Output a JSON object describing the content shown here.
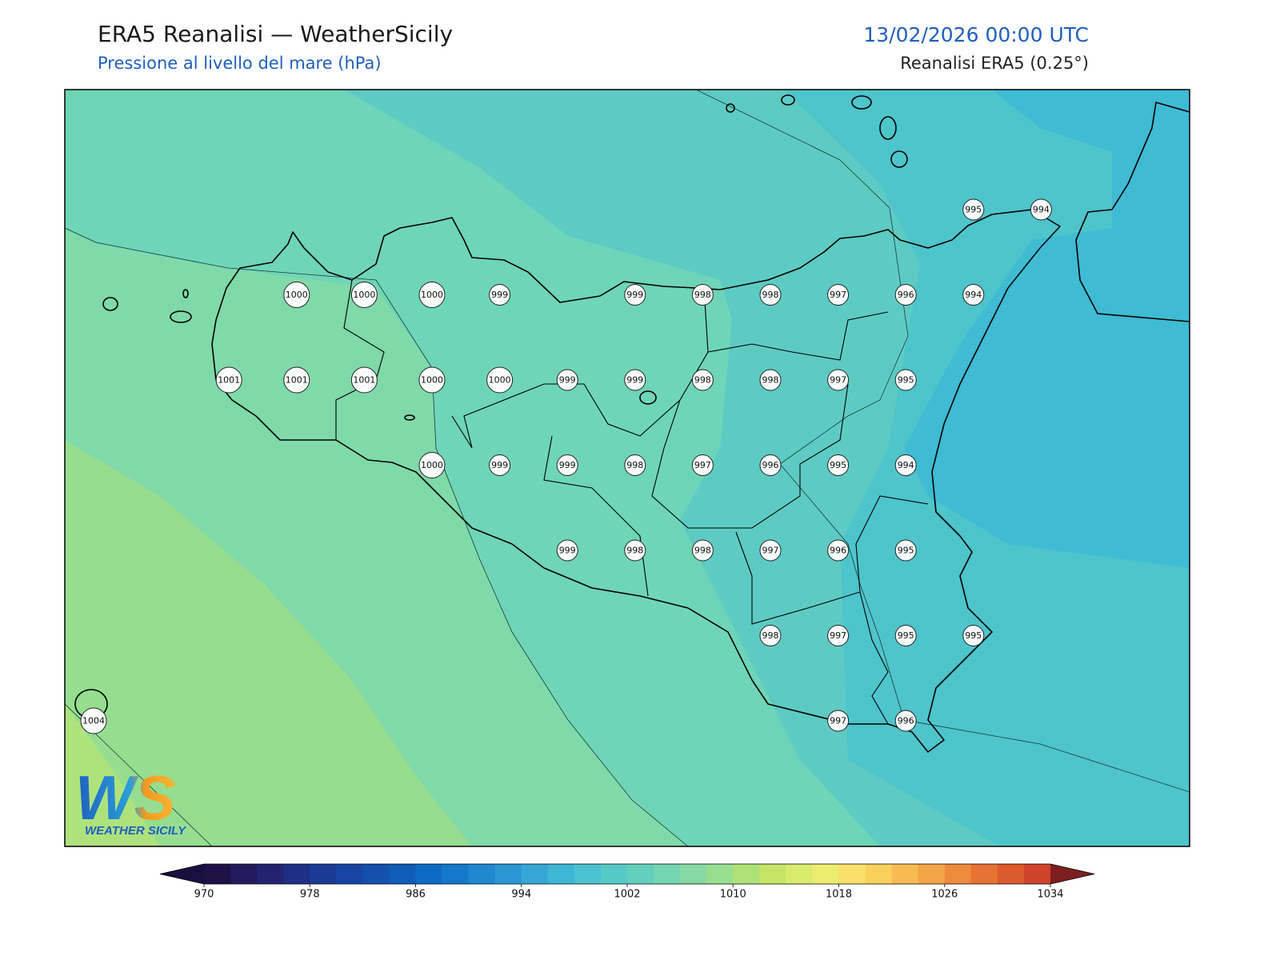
{
  "header": {
    "title": "ERA5 Reanalisi — WeatherSicily",
    "subtitle": "Pressione al livello del mare (hPa)",
    "datetime": "13/02/2026 00:00 UTC",
    "source": "Reanalisi ERA5 (0.25°)"
  },
  "pressure_grid": [
    [
      null,
      null,
      null,
      null,
      null,
      null,
      null,
      null,
      null,
      null,
      null,
      null,
      null,
      995,
      994
    ],
    [
      null,
      null,
      null,
      1000,
      1000,
      1000,
      999,
      null,
      999,
      998,
      998,
      997,
      996,
      994,
      null
    ],
    [
      null,
      null,
      1001,
      1001,
      1001,
      1000,
      1000,
      999,
      999,
      998,
      998,
      997,
      995,
      null,
      null
    ],
    [
      null,
      null,
      null,
      null,
      null,
      1000,
      999,
      999,
      998,
      997,
      996,
      995,
      994,
      null,
      null
    ],
    [
      null,
      null,
      null,
      null,
      null,
      null,
      null,
      999,
      998,
      998,
      997,
      996,
      995,
      null,
      null
    ],
    [
      null,
      null,
      null,
      null,
      null,
      null,
      null,
      null,
      null,
      null,
      998,
      997,
      995,
      995,
      null
    ],
    [
      1004,
      null,
      null,
      null,
      null,
      null,
      null,
      null,
      null,
      null,
      null,
      997,
      996,
      null,
      null
    ]
  ],
  "colorbar": {
    "range": [
      970,
      1034
    ],
    "ticks": [
      970,
      978,
      986,
      994,
      1002,
      1010,
      1018,
      1026,
      1034
    ],
    "colors": [
      "#1f1147",
      "#221a5c",
      "#232470",
      "#1f2f85",
      "#1b3a95",
      "#1845a3",
      "#1450ad",
      "#105db8",
      "#0e6bc3",
      "#1479ca",
      "#1f88cf",
      "#2a97d2",
      "#36a7d5",
      "#3fb6d5",
      "#4ac1cf",
      "#55c9c6",
      "#63cfbc",
      "#74d5b1",
      "#86d9a3",
      "#98de90",
      "#aee278",
      "#c4e667",
      "#d9ea6c",
      "#ecec70",
      "#f9e06a",
      "#fad05c",
      "#f7bb52",
      "#f3a446",
      "#ee8b3a",
      "#e67234",
      "#dd5a2f",
      "#cf432c"
    ],
    "under_color": "#1a0f3f",
    "over_color": "#7d1f1f"
  },
  "logo": {
    "mark": "WS",
    "text": "WEATHER SICILY"
  }
}
